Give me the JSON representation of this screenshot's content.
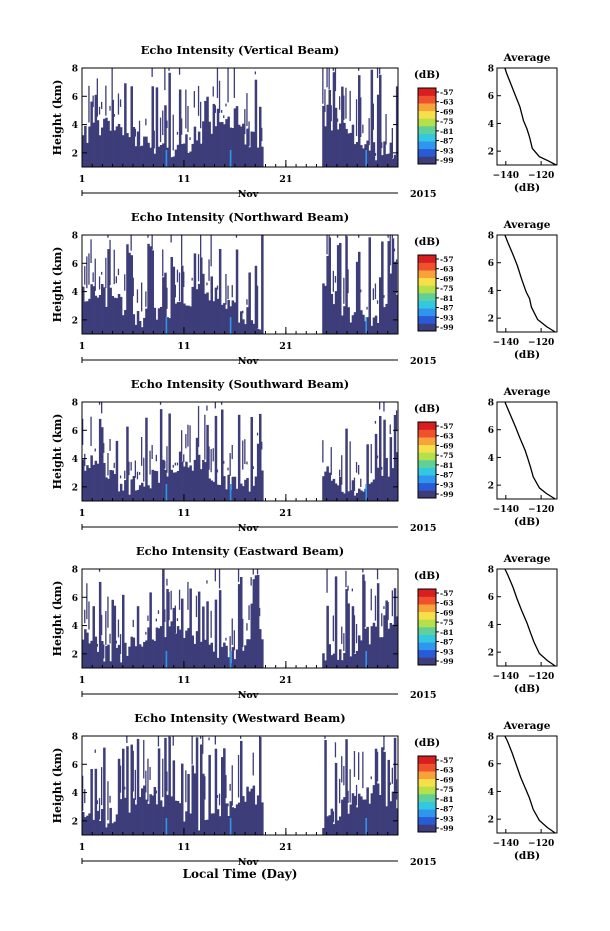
{
  "colors": {
    "low": "#3d3d7a",
    "colorbar": [
      "#3d3d7a",
      "#2a5bd6",
      "#2f96f0",
      "#32c8e0",
      "#5fd09a",
      "#b6e04a",
      "#f5e04a",
      "#f7a33a",
      "#f0502e",
      "#d81f1f"
    ]
  },
  "global": {
    "xlabel": "Local Time (Day)"
  },
  "chart_data": [
    {
      "type": "heatmap",
      "title": "Echo Intensity (Vertical Beam)",
      "ylabel": "Height (km)",
      "yticks": [
        "2",
        "4",
        "6",
        "8"
      ],
      "ylim": [
        1,
        8
      ],
      "xticks": [
        "1",
        "11",
        "21"
      ],
      "xlim": [
        1,
        32
      ],
      "month_label": "Nov",
      "year_label": "2015",
      "gap_days": [
        18.9,
        24.5
      ],
      "colorbar": {
        "unit": "(dB)",
        "ticks": [
          "-57",
          "-63",
          "-69",
          "-75",
          "-81",
          "-87",
          "-93",
          "-99"
        ]
      },
      "avg": {
        "title": "Average",
        "xlabel": "(dB)",
        "xticks": [
          "-140",
          "-120"
        ],
        "xlim": [
          -145,
          -111
        ],
        "profile": [
          [
            -111.5,
            1.0
          ],
          [
            -116,
            1.3
          ],
          [
            -121,
            1.6
          ],
          [
            -125,
            2.2
          ],
          [
            -126.5,
            3.0
          ],
          [
            -128,
            3.6
          ],
          [
            -130,
            4.2
          ],
          [
            -132,
            5.2
          ],
          [
            -134.5,
            6.0
          ],
          [
            -137,
            6.8
          ],
          [
            -139.5,
            7.6
          ],
          [
            -140.5,
            8.0
          ]
        ]
      }
    },
    {
      "type": "heatmap",
      "title": "Echo Intensity (Northward Beam)",
      "ylabel": "Height (km)",
      "yticks": [
        "2",
        "4",
        "6",
        "8"
      ],
      "ylim": [
        1,
        8
      ],
      "xticks": [
        "1",
        "11",
        "21"
      ],
      "xlim": [
        1,
        32
      ],
      "month_label": "Nov",
      "year_label": "2015",
      "gap_days": [
        18.9,
        24.5
      ],
      "colorbar": {
        "unit": "(dB)",
        "ticks": [
          "-57",
          "-63",
          "-69",
          "-75",
          "-81",
          "-87",
          "-93",
          "-99"
        ]
      },
      "avg": {
        "title": "Average",
        "xlabel": "(dB)",
        "xticks": [
          "-140",
          "-120"
        ],
        "xlim": [
          -145,
          -111
        ],
        "profile": [
          [
            -112,
            1.0
          ],
          [
            -117,
            1.4
          ],
          [
            -122,
            1.9
          ],
          [
            -125.5,
            2.8
          ],
          [
            -126.5,
            3.4
          ],
          [
            -128.5,
            3.9
          ],
          [
            -131,
            4.8
          ],
          [
            -133.5,
            5.8
          ],
          [
            -136,
            6.6
          ],
          [
            -139,
            7.5
          ],
          [
            -140.5,
            8.0
          ]
        ]
      }
    },
    {
      "type": "heatmap",
      "title": "Echo Intensity (Southward Beam)",
      "ylabel": "Height (km)",
      "yticks": [
        "2",
        "4",
        "6",
        "8"
      ],
      "ylim": [
        1,
        8
      ],
      "xticks": [
        "1",
        "11",
        "21"
      ],
      "xlim": [
        1,
        32
      ],
      "month_label": "Nov",
      "year_label": "2015",
      "gap_days": [
        18.9,
        24.5
      ],
      "colorbar": {
        "unit": "(dB)",
        "ticks": [
          "-57",
          "-63",
          "-69",
          "-75",
          "-81",
          "-87",
          "-93",
          "-99"
        ]
      },
      "avg": {
        "title": "Average",
        "xlabel": "(dB)",
        "xticks": [
          "-140",
          "-120"
        ],
        "xlim": [
          -145,
          -111
        ],
        "profile": [
          [
            -112,
            1.0
          ],
          [
            -117,
            1.4
          ],
          [
            -121,
            1.8
          ],
          [
            -124.5,
            2.6
          ],
          [
            -126,
            3.3
          ],
          [
            -127.5,
            3.9
          ],
          [
            -129,
            4.5
          ],
          [
            -132,
            5.4
          ],
          [
            -134.5,
            6.2
          ],
          [
            -137.5,
            7.1
          ],
          [
            -140.5,
            8.0
          ]
        ]
      }
    },
    {
      "type": "heatmap",
      "title": "Echo Intensity (Eastward Beam)",
      "ylabel": "Height (km)",
      "yticks": [
        "2",
        "4",
        "6",
        "8"
      ],
      "ylim": [
        1,
        8
      ],
      "xticks": [
        "1",
        "11",
        "21"
      ],
      "xlim": [
        1,
        32
      ],
      "month_label": "Nov",
      "year_label": "2015",
      "gap_days": [
        18.9,
        24.5
      ],
      "colorbar": {
        "unit": "(dB)",
        "ticks": [
          "-57",
          "-63",
          "-69",
          "-75",
          "-81",
          "-87",
          "-93",
          "-99"
        ]
      },
      "avg": {
        "title": "Average",
        "xlabel": "(dB)",
        "xticks": [
          "-140",
          "-120"
        ],
        "xlim": [
          -145,
          -111
        ],
        "profile": [
          [
            -112,
            1.0
          ],
          [
            -116.5,
            1.4
          ],
          [
            -121,
            1.9
          ],
          [
            -124,
            2.7
          ],
          [
            -126,
            3.4
          ],
          [
            -128,
            4.1
          ],
          [
            -131,
            5.0
          ],
          [
            -133.5,
            5.8
          ],
          [
            -136,
            6.7
          ],
          [
            -139,
            7.6
          ],
          [
            -140.5,
            8.0
          ]
        ]
      }
    },
    {
      "type": "heatmap",
      "title": "Echo Intensity (Westward Beam)",
      "ylabel": "Height (km)",
      "yticks": [
        "2",
        "4",
        "6",
        "8"
      ],
      "ylim": [
        1,
        8
      ],
      "xticks": [
        "1",
        "11",
        "21"
      ],
      "xlim": [
        1,
        32
      ],
      "month_label": "Nov",
      "year_label": "2015",
      "gap_days": [
        18.9,
        24.5
      ],
      "colorbar": {
        "unit": "(dB)",
        "ticks": [
          "-57",
          "-63",
          "-69",
          "-75",
          "-81",
          "-87",
          "-93",
          "-99"
        ]
      },
      "avg": {
        "title": "Average",
        "xlabel": "(dB)",
        "xticks": [
          "-140",
          "-120"
        ],
        "xlim": [
          -145,
          -111
        ],
        "profile": [
          [
            -112,
            1.0
          ],
          [
            -116.5,
            1.4
          ],
          [
            -121,
            1.9
          ],
          [
            -124.5,
            2.7
          ],
          [
            -126.5,
            3.5
          ],
          [
            -128.5,
            4.1
          ],
          [
            -131.5,
            5.0
          ],
          [
            -134,
            5.9
          ],
          [
            -136.5,
            6.8
          ],
          [
            -139,
            7.6
          ],
          [
            -140.5,
            8.0
          ]
        ]
      }
    }
  ]
}
